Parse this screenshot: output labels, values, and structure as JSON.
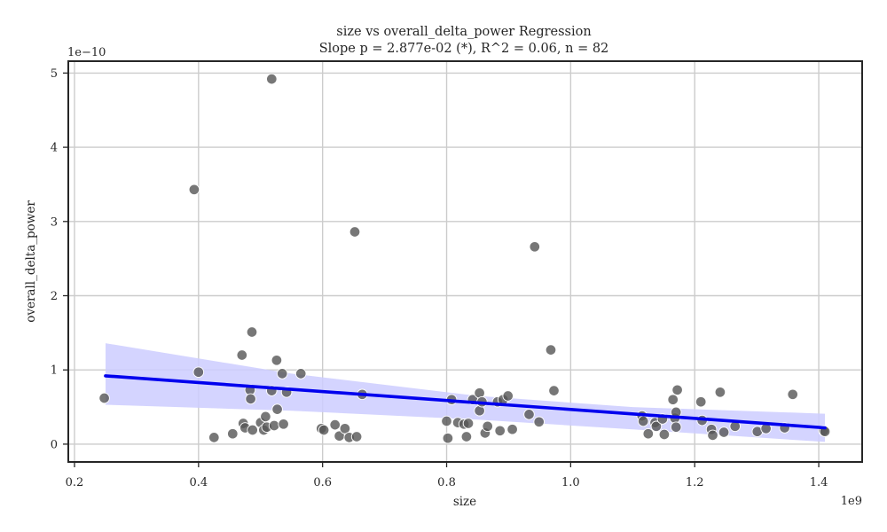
{
  "chart_data": {
    "type": "scatter",
    "title": "size vs overall_delta_power Regression",
    "subtitle": "Slope p = 2.877e-02 (*), R^2 = 0.06, n = 82",
    "xlabel": "size",
    "ylabel": "overall_delta_power",
    "x_offset_label": "1e9",
    "y_offset_label": "1e−10",
    "x_scale": 1000000000.0,
    "y_scale": 1e-10,
    "xlim": [
      0.19,
      1.47
    ],
    "ylim": [
      -0.24,
      5.16
    ],
    "x_ticks": [
      0.2,
      0.4,
      0.6,
      0.8,
      1.0,
      1.2,
      1.4
    ],
    "x_tick_labels": [
      "0.2",
      "0.4",
      "0.6",
      "0.8",
      "1.0",
      "1.2",
      "1.4"
    ],
    "y_ticks": [
      0,
      1,
      2,
      3,
      4,
      5
    ],
    "y_tick_labels": [
      "0",
      "1",
      "2",
      "3",
      "4",
      "5"
    ],
    "grid": true,
    "colors": {
      "points": "#555555",
      "regression_line": "#0000ee",
      "confidence_band": "#ccccff"
    },
    "regression_line": {
      "x": [
        0.25,
        1.41
      ],
      "y": [
        0.92,
        0.22
      ]
    },
    "confidence_band": {
      "x": [
        0.25,
        0.55,
        0.85,
        1.1,
        1.41
      ],
      "lower": [
        0.53,
        0.45,
        0.33,
        0.2,
        0.03
      ],
      "upper": [
        1.36,
        0.95,
        0.65,
        0.5,
        0.41
      ]
    },
    "points": [
      {
        "x": 0.248,
        "y": 0.62
      },
      {
        "x": 0.393,
        "y": 3.43
      },
      {
        "x": 0.4,
        "y": 0.97
      },
      {
        "x": 0.425,
        "y": 0.09
      },
      {
        "x": 0.455,
        "y": 0.14
      },
      {
        "x": 0.47,
        "y": 1.2
      },
      {
        "x": 0.472,
        "y": 0.28
      },
      {
        "x": 0.475,
        "y": 0.22
      },
      {
        "x": 0.483,
        "y": 0.73
      },
      {
        "x": 0.484,
        "y": 0.61
      },
      {
        "x": 0.486,
        "y": 1.51
      },
      {
        "x": 0.487,
        "y": 0.19
      },
      {
        "x": 0.5,
        "y": 0.29
      },
      {
        "x": 0.505,
        "y": 0.19
      },
      {
        "x": 0.508,
        "y": 0.37
      },
      {
        "x": 0.51,
        "y": 0.23
      },
      {
        "x": 0.518,
        "y": 4.92
      },
      {
        "x": 0.518,
        "y": 0.72
      },
      {
        "x": 0.522,
        "y": 0.25
      },
      {
        "x": 0.526,
        "y": 1.13
      },
      {
        "x": 0.527,
        "y": 0.47
      },
      {
        "x": 0.535,
        "y": 0.95
      },
      {
        "x": 0.537,
        "y": 0.27
      },
      {
        "x": 0.542,
        "y": 0.7
      },
      {
        "x": 0.565,
        "y": 0.95
      },
      {
        "x": 0.598,
        "y": 0.21
      },
      {
        "x": 0.602,
        "y": 0.19
      },
      {
        "x": 0.62,
        "y": 0.26
      },
      {
        "x": 0.627,
        "y": 0.11
      },
      {
        "x": 0.636,
        "y": 0.21
      },
      {
        "x": 0.643,
        "y": 0.09
      },
      {
        "x": 0.652,
        "y": 2.86
      },
      {
        "x": 0.655,
        "y": 0.1
      },
      {
        "x": 0.664,
        "y": 0.67
      },
      {
        "x": 0.8,
        "y": 0.31
      },
      {
        "x": 0.802,
        "y": 0.08
      },
      {
        "x": 0.808,
        "y": 0.6
      },
      {
        "x": 0.818,
        "y": 0.29
      },
      {
        "x": 0.828,
        "y": 0.27
      },
      {
        "x": 0.832,
        "y": 0.1
      },
      {
        "x": 0.835,
        "y": 0.28
      },
      {
        "x": 0.842,
        "y": 0.6
      },
      {
        "x": 0.853,
        "y": 0.69
      },
      {
        "x": 0.853,
        "y": 0.45
      },
      {
        "x": 0.857,
        "y": 0.57
      },
      {
        "x": 0.862,
        "y": 0.15
      },
      {
        "x": 0.866,
        "y": 0.24
      },
      {
        "x": 0.882,
        "y": 0.57
      },
      {
        "x": 0.886,
        "y": 0.18
      },
      {
        "x": 0.891,
        "y": 0.6
      },
      {
        "x": 0.899,
        "y": 0.65
      },
      {
        "x": 0.906,
        "y": 0.2
      },
      {
        "x": 0.933,
        "y": 0.4
      },
      {
        "x": 0.942,
        "y": 2.66
      },
      {
        "x": 0.949,
        "y": 0.3
      },
      {
        "x": 0.968,
        "y": 1.27
      },
      {
        "x": 0.973,
        "y": 0.72
      },
      {
        "x": 1.115,
        "y": 0.38
      },
      {
        "x": 1.117,
        "y": 0.31
      },
      {
        "x": 1.125,
        "y": 0.14
      },
      {
        "x": 1.136,
        "y": 0.29
      },
      {
        "x": 1.138,
        "y": 0.24
      },
      {
        "x": 1.148,
        "y": 0.34
      },
      {
        "x": 1.151,
        "y": 0.13
      },
      {
        "x": 1.165,
        "y": 0.6
      },
      {
        "x": 1.168,
        "y": 0.35
      },
      {
        "x": 1.17,
        "y": 0.43
      },
      {
        "x": 1.17,
        "y": 0.23
      },
      {
        "x": 1.172,
        "y": 0.73
      },
      {
        "x": 1.21,
        "y": 0.57
      },
      {
        "x": 1.212,
        "y": 0.32
      },
      {
        "x": 1.227,
        "y": 0.2
      },
      {
        "x": 1.229,
        "y": 0.12
      },
      {
        "x": 1.241,
        "y": 0.7
      },
      {
        "x": 1.247,
        "y": 0.16
      },
      {
        "x": 1.265,
        "y": 0.24
      },
      {
        "x": 1.301,
        "y": 0.17
      },
      {
        "x": 1.315,
        "y": 0.21
      },
      {
        "x": 1.345,
        "y": 0.22
      },
      {
        "x": 1.358,
        "y": 0.67
      },
      {
        "x": 1.408,
        "y": 0.18
      },
      {
        "x": 1.41,
        "y": 0.17
      }
    ]
  }
}
